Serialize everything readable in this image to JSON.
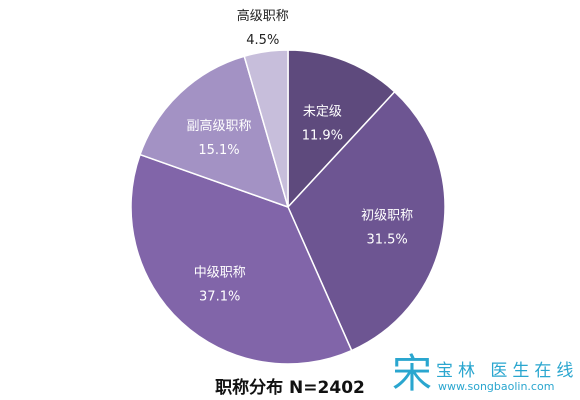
{
  "chart_data": {
    "type": "pie",
    "title": "职称分布 N=2402",
    "start_angle_deg": 0,
    "direction": "clockwise",
    "slices": [
      {
        "label": "未定级",
        "value": 11.9,
        "value_label": "11.9%",
        "color": "#5e4a7d",
        "text_color": "#ffffff"
      },
      {
        "label": "初级职称",
        "value": 31.5,
        "value_label": "31.5%",
        "color": "#6d5592",
        "text_color": "#ffffff"
      },
      {
        "label": "中级职称",
        "value": 37.1,
        "value_label": "37.1%",
        "color": "#8165a9",
        "text_color": "#ffffff"
      },
      {
        "label": "副高级职称",
        "value": 15.1,
        "value_label": "15.1%",
        "color": "#a392c4",
        "text_color": "#ffffff"
      },
      {
        "label": "高级职称",
        "value": 4.5,
        "value_label": "4.5%",
        "color": "#c7bedb",
        "text_color": "#222222"
      }
    ]
  },
  "watermark": {
    "glyph": "宋",
    "name": "宝林 医生在线",
    "url": "www.songbaolin.com",
    "color": "#2aa6cf"
  }
}
